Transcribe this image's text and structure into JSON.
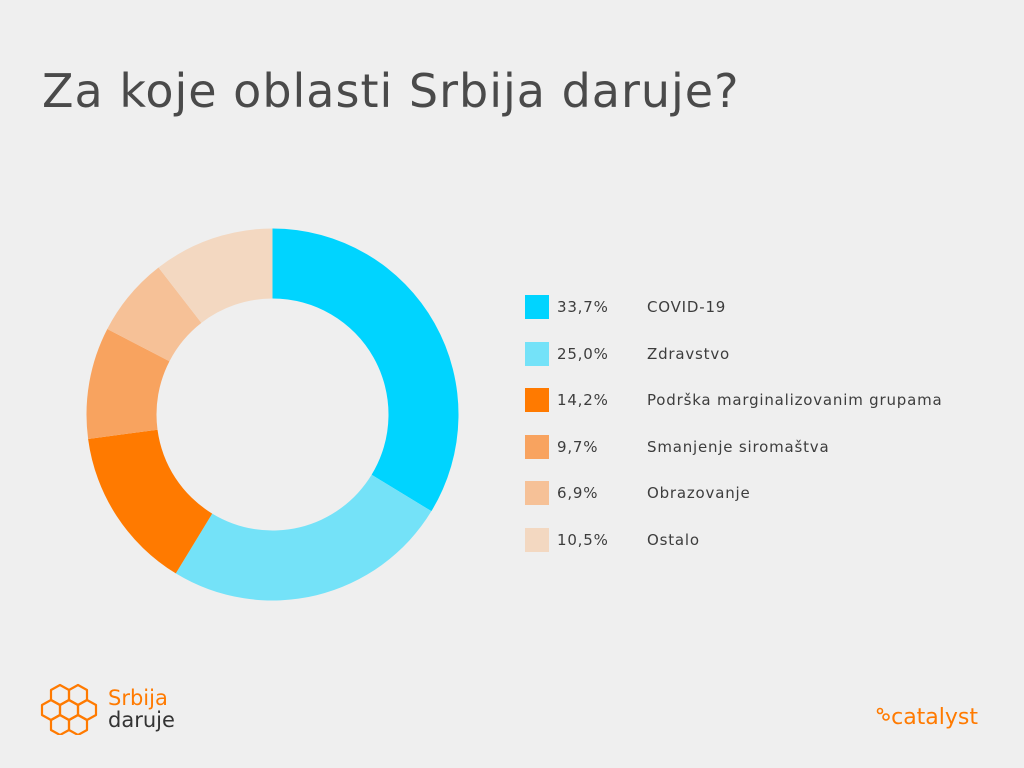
{
  "title": "Za koje oblasti Srbija daruje?",
  "chart_data": {
    "type": "pie",
    "donut": true,
    "title": "Za koje oblasti Srbija daruje?",
    "slices": [
      {
        "label": "COVID-19",
        "value": 33.7,
        "display": "33,7%",
        "color": "#00d4ff"
      },
      {
        "label": "Zdravstvo",
        "value": 25.0,
        "display": "25,0%",
        "color": "#74e2f8"
      },
      {
        "label": "Podrška marginalizovanim grupama",
        "value": 14.2,
        "display": "14,2%",
        "color": "#ff7a00"
      },
      {
        "label": "Smanjenje siromaštva",
        "value": 9.7,
        "display": "9,7%",
        "color": "#f8a35f"
      },
      {
        "label": "Obrazovanje",
        "value": 6.9,
        "display": "6,9%",
        "color": "#f6c197"
      },
      {
        "label": "Ostalo",
        "value": 10.5,
        "display": "10,5%",
        "color": "#f3d8c1"
      }
    ],
    "legend_position": "right",
    "start_angle_deg": 0,
    "direction": "clockwise"
  },
  "branding": {
    "left_logo_line1": "Srbija",
    "left_logo_line2": "daruje",
    "right_logo": "catalyst",
    "accent_color": "#ff7a00"
  }
}
